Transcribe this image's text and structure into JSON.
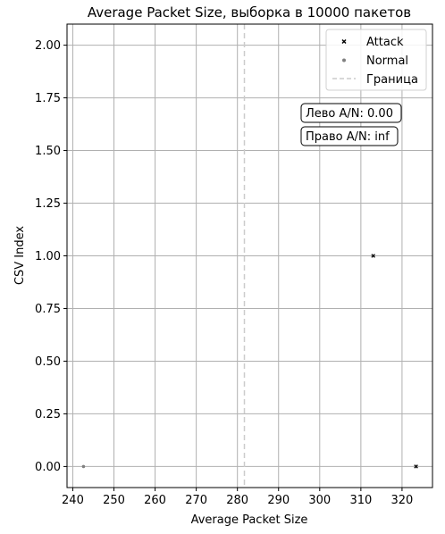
{
  "chart_data": {
    "type": "scatter",
    "title": "Average Packet Size, выборка в 10000 пакетов",
    "xlabel": "Average Packet Size",
    "ylabel": "CSV Index",
    "xlim": [
      238.6,
      327.4
    ],
    "ylim": [
      -0.1,
      2.1
    ],
    "x_ticks": [
      240,
      250,
      260,
      270,
      280,
      290,
      300,
      310,
      320
    ],
    "y_ticks": [
      0.0,
      0.25,
      0.5,
      0.75,
      1.0,
      1.25,
      1.5,
      1.75,
      2.0
    ],
    "grid": true,
    "legend_position": "top-right",
    "series": [
      {
        "name": "Attack",
        "color": "#000000",
        "marker": "x",
        "points": [
          {
            "x": 313,
            "y": 1.0
          },
          {
            "x": 323.4,
            "y": 0.0
          }
        ]
      },
      {
        "name": "Normal",
        "color": "#808080",
        "marker": "o",
        "points": [
          {
            "x": 242.6,
            "y": 0.0
          }
        ]
      }
    ],
    "boundary": {
      "name": "Граница",
      "x": 281.7,
      "color": "#cccccc",
      "style": "dashed"
    },
    "annotations": [
      {
        "text": "Лево A/N: 0.00"
      },
      {
        "text": "Право A/N: inf"
      }
    ]
  }
}
